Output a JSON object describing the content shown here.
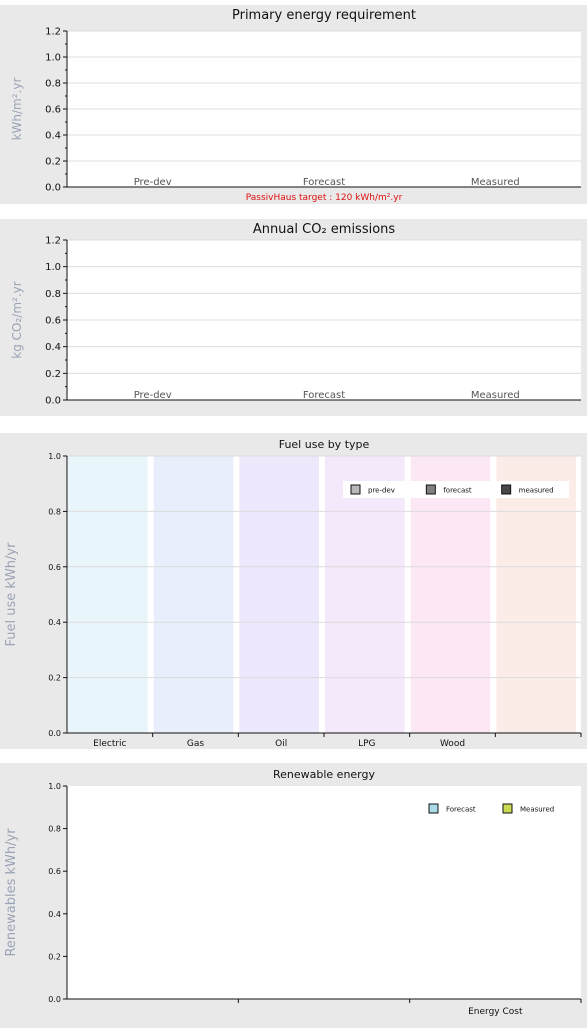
{
  "chart_data": [
    {
      "type": "bar",
      "title": "Primary energy requirement",
      "ylabel": "kWh/m².yr",
      "categories": [
        "Pre-dev",
        "Forecast",
        "Measured"
      ],
      "values": [
        0,
        0,
        0
      ],
      "ylim": [
        0,
        1.2
      ],
      "yticks": [
        "0.0",
        "0.2",
        "0.4",
        "0.6",
        "0.8",
        "1.0",
        "1.2"
      ],
      "annotation": "PassivHaus target : 120 kWh/m².yr",
      "grid": true
    },
    {
      "type": "bar",
      "title": "Annual CO₂ emissions",
      "ylabel": "kg CO₂/m².yr",
      "categories": [
        "Pre-dev",
        "Forecast",
        "Measured"
      ],
      "values": [
        0,
        0,
        0
      ],
      "ylim": [
        0,
        1.2
      ],
      "yticks": [
        "0.0",
        "0.2",
        "0.4",
        "0.6",
        "0.8",
        "1.0",
        "1.2"
      ],
      "grid": true
    },
    {
      "type": "bar",
      "title": "Fuel use by type",
      "ylabel": "Fuel use  kWh/yr",
      "categories": [
        "Electric",
        "Gas",
        "Oil",
        "LPG",
        "Wood",
        ""
      ],
      "category_colors": [
        "#e8f5fb",
        "#e8eefb",
        "#ede8fb",
        "#f4e8fb",
        "#fbe8f4",
        "#fbece8"
      ],
      "series": [
        {
          "name": "pre-dev",
          "color": "#b8b8b8",
          "values": [
            0,
            0,
            0,
            0,
            0,
            0
          ]
        },
        {
          "name": "forecast",
          "color": "#808080",
          "values": [
            0,
            0,
            0,
            0,
            0,
            0
          ]
        },
        {
          "name": "measured",
          "color": "#474747",
          "values": [
            0,
            0,
            0,
            0,
            0,
            0
          ]
        }
      ],
      "ylim": [
        0,
        1.0
      ],
      "yticks": [
        "0.0",
        "0.2",
        "0.4",
        "0.6",
        "0.8",
        "1.0"
      ],
      "legend": "top-right",
      "grid": true
    },
    {
      "type": "bar",
      "title": "Renewable energy",
      "ylabel": "Renewables  kWh/yr",
      "categories": [
        "",
        "",
        "Energy Cost"
      ],
      "series": [
        {
          "name": "Forecast",
          "color": "#a9dbe9",
          "values": [
            0,
            0,
            0
          ]
        },
        {
          "name": "Measured",
          "color": "#c8da52",
          "values": [
            0,
            0,
            0
          ]
        }
      ],
      "ylim": [
        0,
        1.0
      ],
      "yticks": [
        "0.0",
        "0.2",
        "0.4",
        "0.6",
        "0.8",
        "1.0"
      ],
      "legend": "top-right",
      "grid": false
    }
  ]
}
